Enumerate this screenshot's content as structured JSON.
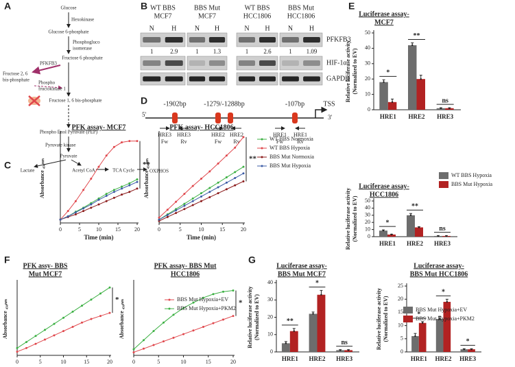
{
  "panel_labels": [
    "A",
    "B",
    "C",
    "D",
    "E",
    "F",
    "G"
  ],
  "pathway": {
    "labels": [
      "Glucose",
      "Hexokinase",
      "Glucose 6-phosphate",
      "Phosphogluco",
      "isomerase",
      "Fructose 6 phosphate",
      "PFKFB3",
      "Fructose 2, 6",
      "bis-phosphate",
      "Phospho",
      "fructokinase 1",
      "Fructose 1, 6 bis-phosphate",
      "Phospho Enol Pyruvate (PEP)",
      "Pyruvate kinase",
      "Pyruvate",
      "Lactate",
      "Acetyl CoA",
      "TCA Cycle",
      "OXPHOS"
    ]
  },
  "blot": {
    "groups": [
      [
        "WT BBS",
        "MCF7"
      ],
      [
        "BBS Mut",
        "MCF7"
      ],
      [
        "WT BBS",
        "HCC1806"
      ],
      [
        "BBS Mut",
        "HCC1806"
      ]
    ],
    "lanes": [
      "N",
      "H"
    ],
    "ratios": [
      [
        "1",
        "2.9"
      ],
      [
        "1",
        "1.3"
      ],
      [
        "1",
        "2.6"
      ],
      [
        "1",
        "1.09"
      ]
    ],
    "proteins": [
      "PFKFB3",
      "HIF-1α",
      "GAPDH"
    ]
  },
  "gene_map": {
    "ends": [
      "5'",
      "3'"
    ],
    "sites": [
      "-1902bp",
      "-1279/-1288bp",
      "-107bp"
    ],
    "tss": "TSS",
    "primers": [
      [
        "HRE3",
        "Fw"
      ],
      [
        "HRE3",
        "Rv"
      ],
      [
        "HRE2",
        "Fw"
      ],
      [
        "HRE2",
        "Rv"
      ],
      [
        "HRE1",
        "Fw"
      ],
      [
        "HRE1",
        "Rv"
      ]
    ]
  },
  "chart_data": [
    {
      "type": "line",
      "title": [
        "PFK assay- MCF7"
      ],
      "xlabel": "Time (min)",
      "ylabel": [
        "Absorbance ₄₅₀ₙₘ"
      ],
      "x": [
        0,
        2,
        4,
        6,
        8,
        10,
        12,
        14,
        16,
        18,
        20
      ],
      "xlim": [
        0,
        20
      ],
      "xticks": [
        0,
        5,
        10,
        15,
        20
      ],
      "ylim": [
        0,
        1.35
      ],
      "series": [
        {
          "name": "WT BBS Normoxia",
          "color": "#3cb043",
          "values": [
            0.05,
            0.1,
            0.17,
            0.23,
            0.3,
            0.37,
            0.44,
            0.5,
            0.55,
            0.6,
            0.66
          ]
        },
        {
          "name": "WT BBS Hypoxia",
          "color": "#e0474c",
          "values": [
            0.05,
            0.18,
            0.33,
            0.5,
            0.67,
            0.85,
            1.02,
            1.15,
            1.22,
            1.24,
            1.24
          ]
        },
        {
          "name": "BBS Mut Normoxia",
          "color": "#8b1a1a",
          "values": [
            0.05,
            0.09,
            0.13,
            0.18,
            0.23,
            0.28,
            0.33,
            0.38,
            0.43,
            0.47,
            0.52
          ]
        },
        {
          "name": "BBS Mut Hypoxia",
          "color": "#3b5ba5",
          "values": [
            0.05,
            0.1,
            0.16,
            0.22,
            0.28,
            0.35,
            0.41,
            0.47,
            0.52,
            0.57,
            0.62
          ]
        }
      ],
      "annotations": [
        "**"
      ],
      "legend": false
    },
    {
      "type": "line",
      "title": [
        "PFK assay- HCC1806"
      ],
      "xlabel": "Time (min)",
      "ylabel": [
        "Absorbance ₄₅₀ₙₘ"
      ],
      "x": [
        0,
        2,
        4,
        6,
        8,
        10,
        12,
        14,
        16,
        18,
        20
      ],
      "xlim": [
        0,
        20
      ],
      "xticks": [
        0,
        5,
        10,
        15,
        20
      ],
      "ylim": [
        0,
        1.35
      ],
      "series": [
        {
          "name": "WT BBS Normoxia",
          "color": "#3cb043",
          "values": [
            0.05,
            0.13,
            0.21,
            0.29,
            0.37,
            0.45,
            0.53,
            0.61,
            0.69,
            0.77,
            0.85
          ]
        },
        {
          "name": "WT BBS Hypoxia",
          "color": "#e0474c",
          "values": [
            0.08,
            0.2,
            0.32,
            0.44,
            0.56,
            0.67,
            0.78,
            0.9,
            1.02,
            1.14,
            1.3
          ]
        },
        {
          "name": "BBS Mut Normoxia",
          "color": "#8b1a1a",
          "values": [
            0.03,
            0.09,
            0.15,
            0.21,
            0.27,
            0.33,
            0.39,
            0.45,
            0.51,
            0.57,
            0.63
          ]
        },
        {
          "name": "BBS Mut Hypoxia",
          "color": "#3b5ba5",
          "values": [
            0.05,
            0.12,
            0.19,
            0.26,
            0.33,
            0.4,
            0.47,
            0.54,
            0.61,
            0.68,
            0.75
          ]
        }
      ],
      "annotations": [
        "**"
      ],
      "legend": true
    },
    {
      "type": "bar",
      "title": [
        "Luciferase assay-",
        "MCF7"
      ],
      "ylabel": [
        "Relative luciferase activity",
        "(Normalized to EV)"
      ],
      "categories": [
        "HRE1",
        "HRE2",
        "HRE3"
      ],
      "ylim": [
        0,
        50
      ],
      "yticks": [
        0,
        10,
        20,
        30,
        40,
        50
      ],
      "series": [
        {
          "name": "WT BBS Hypoxia",
          "color": "#6d6d6d",
          "values": [
            18,
            42,
            1
          ],
          "errors": [
            1.5,
            1.5,
            0.3
          ]
        },
        {
          "name": "BBS Mut Hypoxia",
          "color": "#b22222",
          "values": [
            5,
            20,
            1
          ],
          "errors": [
            2,
            2.5,
            0.3
          ]
        }
      ],
      "annotations": [
        "*",
        "**",
        "ns"
      ],
      "legend": false
    },
    {
      "type": "bar",
      "title": [
        "Luciferase assay-",
        "HCC1806"
      ],
      "ylabel": [
        "Relative luciferase activity",
        "(Normalized to EV)"
      ],
      "categories": [
        "HRE1",
        "HRE2",
        "HRE3"
      ],
      "ylim": [
        0,
        50
      ],
      "yticks": [
        0,
        10,
        20,
        30,
        40,
        50
      ],
      "series": [
        {
          "name": "WT BBS Hypoxia",
          "color": "#6d6d6d",
          "values": [
            8.5,
            30,
            1
          ],
          "errors": [
            1,
            2.5,
            0.3
          ]
        },
        {
          "name": "BBS Mut Hypoxia",
          "color": "#b22222",
          "values": [
            3,
            13,
            1
          ],
          "errors": [
            0.5,
            1,
            0.3
          ]
        }
      ],
      "annotations": [
        "*",
        "**",
        "ns"
      ],
      "legend": true
    },
    {
      "type": "line",
      "title": [
        "PFK assy- BBS",
        "Mut MCF7"
      ],
      "xlabel": "Time (min)",
      "ylabel": [
        "Absorbance ₄₅₀ₙₘ"
      ],
      "x": [
        0,
        2,
        4,
        6,
        8,
        10,
        12,
        14,
        16,
        18,
        20
      ],
      "xlim": [
        0,
        20
      ],
      "xticks": [
        0,
        5,
        10,
        15,
        20
      ],
      "ylim": [
        0,
        1.2
      ],
      "series": [
        {
          "name": "BBS Mut Hypoxia+EV",
          "color": "#e0474c",
          "values": [
            0.06,
            0.12,
            0.19,
            0.26,
            0.33,
            0.4,
            0.47,
            0.54,
            0.6,
            0.65,
            0.7
          ]
        },
        {
          "name": "BBS Mut Hypoxia+PKM2",
          "color": "#3cb043",
          "values": [
            0.12,
            0.22,
            0.32,
            0.42,
            0.52,
            0.62,
            0.72,
            0.82,
            0.92,
            1.02,
            1.12
          ]
        }
      ],
      "annotations": [
        "*"
      ],
      "legend": false
    },
    {
      "type": "line",
      "title": [
        "PFK assay- BBS Mut",
        "HCC1806"
      ],
      "xlabel": "Time (min)",
      "ylabel": [
        "Absorbance ₄₅₀ₙₘ"
      ],
      "x": [
        0,
        2,
        4,
        6,
        8,
        10,
        12,
        14,
        16,
        18,
        20
      ],
      "xlim": [
        0,
        20
      ],
      "xticks": [
        0,
        5,
        10,
        15,
        20
      ],
      "ylim": [
        0,
        1.2
      ],
      "series": [
        {
          "name": "BBS Mut Hypoxia+EV",
          "color": "#e0474c",
          "values": [
            0.05,
            0.11,
            0.17,
            0.23,
            0.29,
            0.35,
            0.41,
            0.47,
            0.53,
            0.59,
            0.65
          ]
        },
        {
          "name": "BBS Mut Hypoxia+PKM2",
          "color": "#3cb043",
          "values": [
            0.1,
            0.25,
            0.4,
            0.54,
            0.67,
            0.78,
            0.87,
            0.95,
            1.01,
            1.05,
            1.07
          ]
        }
      ],
      "annotations": [
        "*"
      ],
      "legend": true
    },
    {
      "type": "bar",
      "title": [
        "Luciferase assay-",
        "BBS Mut MCF7"
      ],
      "ylabel": [
        "Relative luciferase activity",
        "(Normalized to EV)"
      ],
      "categories": [
        "HRE1",
        "HRE2",
        "HRE3"
      ],
      "ylim": [
        0,
        40
      ],
      "yticks": [
        0,
        10,
        20,
        30,
        40
      ],
      "series": [
        {
          "name": "BBS Mut Hypoxia+EV",
          "color": "#6d6d6d",
          "values": [
            5,
            22,
            1
          ],
          "errors": [
            1,
            1,
            0.3
          ]
        },
        {
          "name": "BBS Mut Hypoxia+PKM2",
          "color": "#b22222",
          "values": [
            12,
            33,
            1
          ],
          "errors": [
            1.5,
            2.5,
            0.3
          ]
        }
      ],
      "annotations": [
        "**",
        "*",
        "ns"
      ],
      "legend": false
    },
    {
      "type": "bar",
      "title": [
        "Luciferase assay-",
        "BBS Mut HCC1806"
      ],
      "ylabel": [
        "Relative luciferase activity",
        "(Normalized to EV)"
      ],
      "categories": [
        "HRE1",
        "HRE2",
        "HRE3"
      ],
      "ylim": [
        0,
        25
      ],
      "yticks": [
        0,
        5,
        10,
        15,
        20,
        25
      ],
      "series": [
        {
          "name": "BBS Mut Hypoxia+EV",
          "color": "#6d6d6d",
          "values": [
            6,
            12.5,
            1
          ],
          "errors": [
            1,
            1,
            0.2
          ]
        },
        {
          "name": "BBS Mut Hypoxia+PKM2",
          "color": "#b22222",
          "values": [
            11,
            19,
            1
          ],
          "errors": [
            0.5,
            1,
            0.2
          ]
        }
      ],
      "annotations": [
        "*",
        "*",
        "*"
      ],
      "legend": true
    }
  ]
}
